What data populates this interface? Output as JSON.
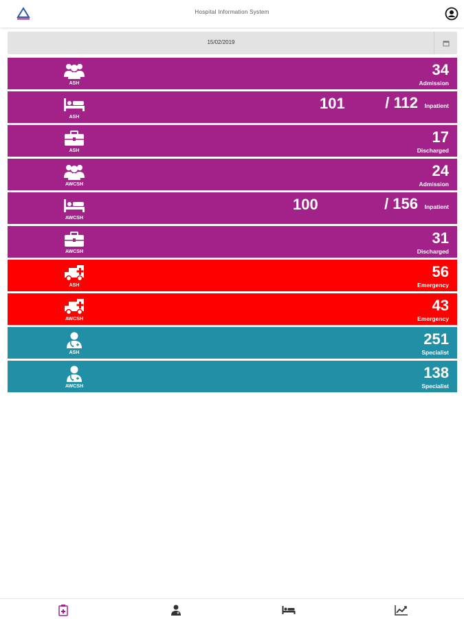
{
  "app": {
    "title": "Hospital Information System"
  },
  "header": {
    "logo_icon": "triangle-logo-icon",
    "account_icon": "account-circle-icon"
  },
  "date_picker": {
    "value": "15/02/2019",
    "icon": "calendar-icon"
  },
  "colors": {
    "purple": "#a2228a",
    "red": "#ff0000",
    "teal": "#2190a7"
  },
  "rows": [
    {
      "icon": "users-icon",
      "site": "ASH",
      "value": "34",
      "label": "Admission"
    },
    {
      "icon": "bed-icon",
      "site": "ASH",
      "current": "101",
      "total": "/ 112",
      "label": "Inpatient"
    },
    {
      "icon": "briefcase-icon",
      "site": "ASH",
      "value": "17",
      "label": "Discharged"
    },
    {
      "icon": "users-icon",
      "site": "AWCSH",
      "value": "24",
      "label": "Admission"
    },
    {
      "icon": "bed-icon",
      "site": "AWCSH",
      "current": "100",
      "total": "/ 156",
      "label": "Inpatient"
    },
    {
      "icon": "briefcase-icon",
      "site": "AWCSH",
      "value": "31",
      "label": "Discharged"
    },
    {
      "icon": "ambulance-icon",
      "site": "ASH",
      "value": "56",
      "label": "Emergency"
    },
    {
      "icon": "ambulance-icon",
      "site": "AWCSH",
      "value": "43",
      "label": "Emergency"
    },
    {
      "icon": "doctor-icon",
      "site": "ASH",
      "value": "251",
      "label": "Specialist"
    },
    {
      "icon": "doctor-icon",
      "site": "AWCSH",
      "value": "138",
      "label": "Specialist"
    }
  ],
  "tabs": [
    {
      "icon": "clipboard-icon",
      "active": true
    },
    {
      "icon": "doctor-icon"
    },
    {
      "icon": "bed-icon"
    },
    {
      "icon": "line-chart-icon"
    }
  ]
}
